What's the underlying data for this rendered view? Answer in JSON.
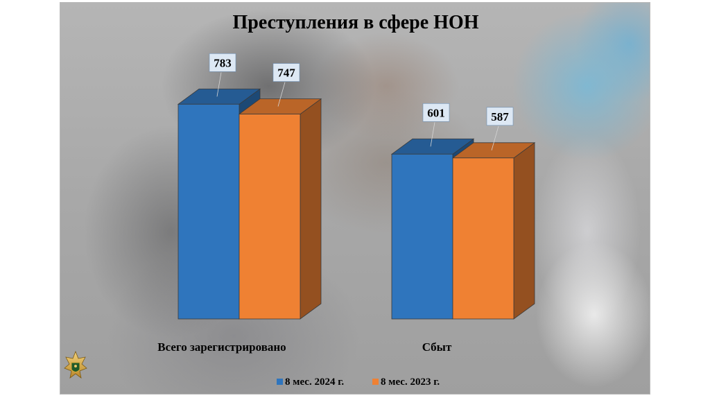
{
  "chart_data": {
    "type": "bar",
    "title": "Преступления в сфере НОН",
    "categories": [
      "Всего зарегистрировано",
      "Сбыт"
    ],
    "series": [
      {
        "name": "8 мес. 2024 г.",
        "values": [
          783,
          601
        ],
        "color": "#2f75bd"
      },
      {
        "name": "8 мес. 2023 г.",
        "values": [
          747,
          587
        ],
        "color": "#ef8133"
      }
    ],
    "ylim": [
      0,
      900
    ],
    "three_d": true,
    "legend_position": "bottom-center",
    "grid": false
  },
  "logo": {
    "icon": "prosecutor-emblem-icon"
  }
}
